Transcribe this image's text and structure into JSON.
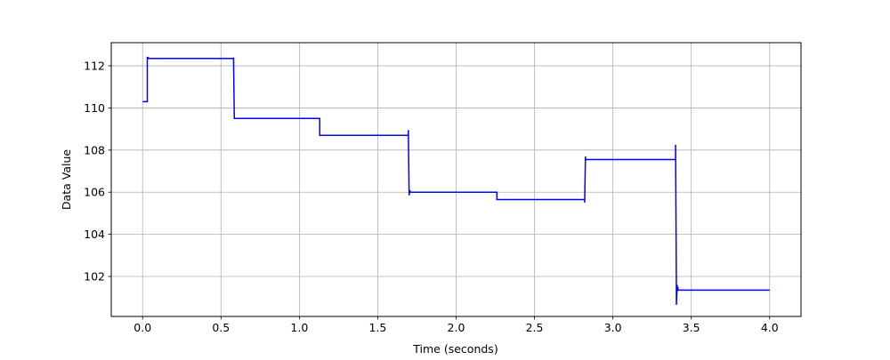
{
  "chart_data": {
    "type": "line",
    "title": "",
    "xlabel": "Time (seconds)",
    "ylabel": "Data Value",
    "xlim": [
      -0.2,
      4.2
    ],
    "ylim": [
      100.1,
      113.1
    ],
    "x_ticks": [
      0.0,
      0.5,
      1.0,
      1.5,
      2.0,
      2.5,
      3.0,
      3.5,
      4.0
    ],
    "x_tick_labels": [
      "0.0",
      "0.5",
      "1.0",
      "1.5",
      "2.0",
      "2.5",
      "3.0",
      "3.5",
      "4.0"
    ],
    "y_ticks": [
      102,
      104,
      106,
      108,
      110,
      112
    ],
    "y_tick_labels": [
      "102",
      "104",
      "106",
      "108",
      "110",
      "112"
    ],
    "grid": true,
    "legend": "none",
    "series": [
      {
        "color": "#0000ff",
        "x": [
          0.0,
          0.03,
          0.03,
          0.035,
          0.035,
          0.58,
          0.58,
          0.585,
          0.585,
          1.13,
          1.13,
          1.695,
          1.695,
          1.7,
          1.7,
          1.705,
          1.705,
          2.26,
          2.26,
          2.265,
          2.265,
          2.82,
          2.82,
          2.825,
          2.825,
          2.83,
          2.83,
          3.4,
          3.4,
          3.405,
          3.405,
          3.41,
          3.41,
          3.415,
          3.415,
          3.42,
          3.42,
          3.43,
          3.43,
          4.0
        ],
        "y": [
          110.3,
          110.3,
          112.4,
          112.4,
          112.35,
          112.35,
          112.4,
          109.5,
          109.5,
          109.5,
          108.7,
          108.7,
          108.95,
          106.0,
          105.85,
          106.1,
          106.0,
          106.0,
          105.65,
          105.65,
          105.65,
          105.65,
          105.5,
          107.7,
          107.55,
          107.55,
          107.55,
          107.55,
          108.25,
          101.3,
          100.65,
          101.6,
          101.3,
          101.5,
          101.35,
          101.35,
          101.35,
          101.35,
          101.35,
          101.35
        ]
      }
    ]
  }
}
